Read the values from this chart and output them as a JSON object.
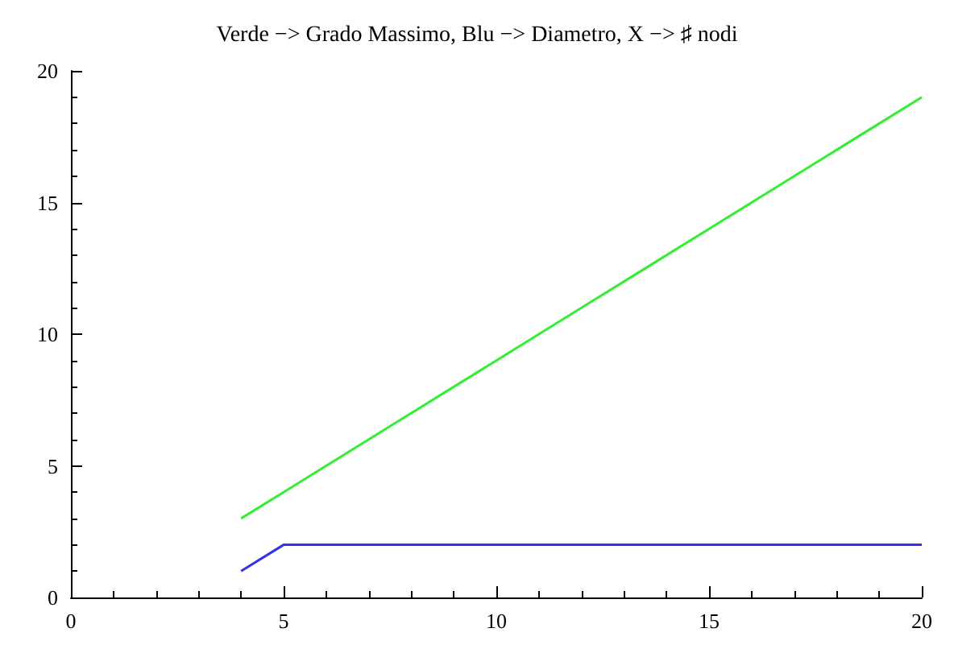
{
  "chart_data": {
    "type": "line",
    "title": "Verde −> Grado Massimo, Blu −> Diametro, X −> ♯ nodi",
    "x": [
      4,
      5,
      6,
      7,
      8,
      9,
      10,
      11,
      12,
      13,
      14,
      15,
      16,
      17,
      18,
      19,
      20
    ],
    "series": [
      {
        "color": "#33ee33",
        "values": [
          3,
          4,
          5,
          6,
          7,
          8,
          9,
          10,
          11,
          12,
          13,
          14,
          15,
          16,
          17,
          18,
          19
        ]
      },
      {
        "color": "#3333ee",
        "values": [
          1,
          2,
          2,
          2,
          2,
          2,
          2,
          2,
          2,
          2,
          2,
          2,
          2,
          2,
          2,
          2,
          2
        ]
      }
    ],
    "xlim": [
      0,
      20
    ],
    "xticks": [
      0,
      5,
      10,
      15,
      20
    ],
    "ylim": [
      0,
      20
    ],
    "yticks": [
      0,
      5,
      10,
      15,
      20
    ],
    "grid": false,
    "marker": "none",
    "line_style": "solid"
  }
}
